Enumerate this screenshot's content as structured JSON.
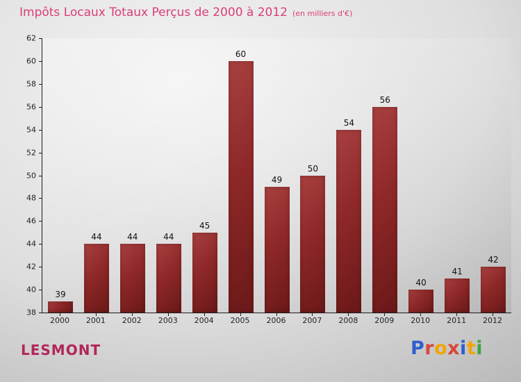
{
  "header": {
    "title": "Impôts Locaux Totaux Perçus de 2000 à 2012",
    "subtitle": "(en milliers d'€)"
  },
  "footer": {
    "place": "LESMONT"
  },
  "logo": {
    "text": "Proxiti",
    "letters": [
      {
        "ch": "P",
        "color": "#2f5fd0"
      },
      {
        "ch": "r",
        "color": "#d9453a"
      },
      {
        "ch": "o",
        "color": "#f0a500"
      },
      {
        "ch": "x",
        "color": "#d9453a"
      },
      {
        "ch": "i",
        "color": "#2f5fd0"
      },
      {
        "ch": "t",
        "color": "#f0a500"
      },
      {
        "ch": "i",
        "color": "#3fa33f"
      }
    ]
  },
  "chart_data": {
    "type": "bar",
    "title": "Impôts Locaux Totaux Perçus de 2000 à 2012",
    "subtitle": "(en milliers d'€)",
    "categories": [
      "2000",
      "2001",
      "2002",
      "2003",
      "2004",
      "2005",
      "2006",
      "2007",
      "2008",
      "2009",
      "2010",
      "2011",
      "2012"
    ],
    "values": [
      39,
      44,
      44,
      44,
      45,
      60,
      49,
      50,
      54,
      56,
      40,
      41,
      42
    ],
    "xlabel": "",
    "ylabel": "",
    "ylim": [
      38,
      62
    ],
    "yticks": [
      38,
      40,
      42,
      44,
      46,
      48,
      50,
      52,
      54,
      56,
      58,
      60,
      62
    ],
    "grid": false,
    "legend_position": "none",
    "bar_color": "#8e2828",
    "value_labels_shown": true
  }
}
